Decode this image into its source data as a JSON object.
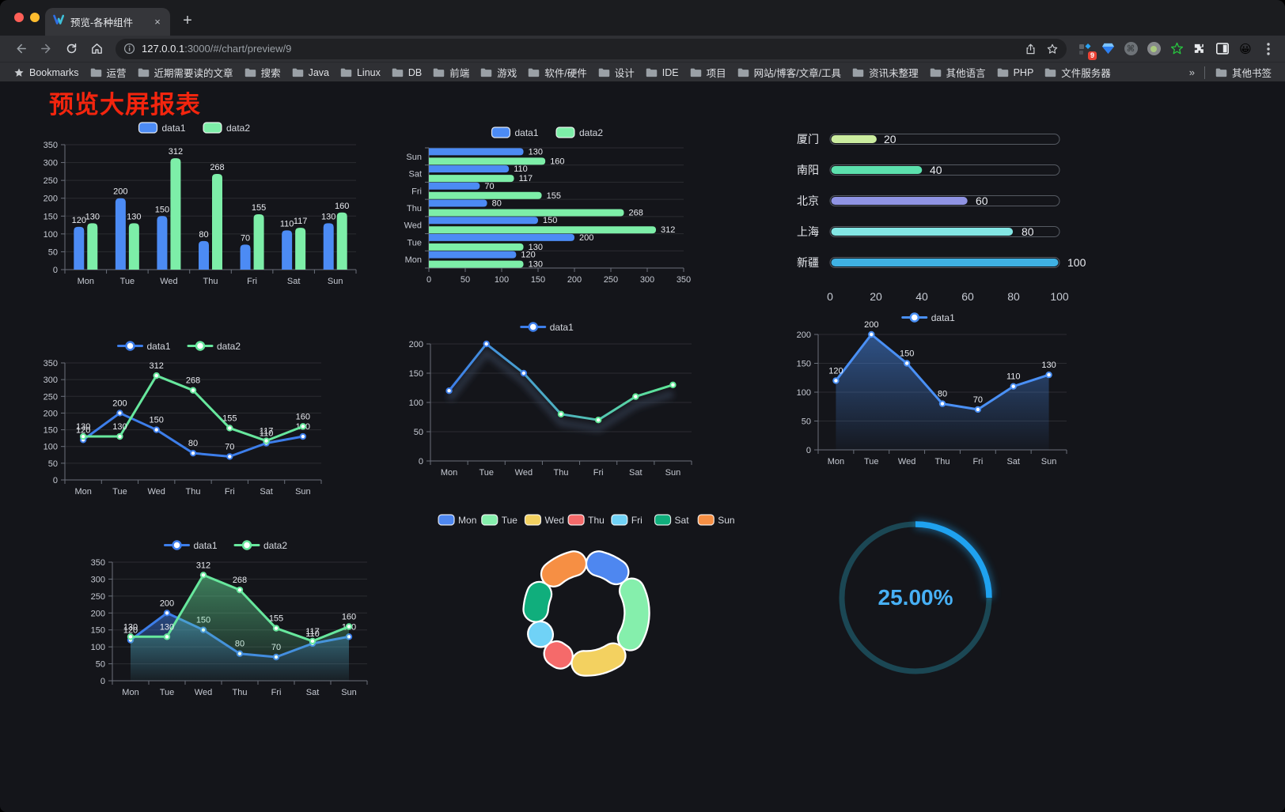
{
  "browser": {
    "tab_title": "预览-各种组件",
    "tab_close": "×",
    "new_tab": "+",
    "url_host": "127.0.0.1",
    "url_rest": ":3000/#/chart/preview/9",
    "bookmarks_label": "Bookmarks",
    "bookmarks": [
      "运营",
      "近期需要读的文章",
      "搜索",
      "Java",
      "Linux",
      "DB",
      "前端",
      "游戏",
      "软件/硬件",
      "设计",
      "IDE",
      "项目",
      "网站/博客/文章/工具",
      "资讯未整理",
      "其他语言",
      "PHP",
      "文件服务器"
    ],
    "bookmarks_overflow": "»",
    "other_bookmarks": "其他书签",
    "extension_badge": "9"
  },
  "page": {
    "title": "预览大屏报表",
    "title_color": "#f3250e",
    "background": "#14151a"
  },
  "chart_data": [
    {
      "type": "bar",
      "categories": [
        "Mon",
        "Tue",
        "Wed",
        "Thu",
        "Fri",
        "Sat",
        "Sun"
      ],
      "series": [
        {
          "name": "data1",
          "color": "#4C8BF4",
          "values": [
            120,
            200,
            150,
            80,
            70,
            110,
            130
          ]
        },
        {
          "name": "data2",
          "color": "#7DEEA8",
          "values": [
            130,
            130,
            312,
            268,
            155,
            117,
            160
          ]
        }
      ],
      "ylim": [
        0,
        350
      ],
      "ytick": 50,
      "value_labels": true,
      "legend": true,
      "legend_position": "top",
      "grid": true
    },
    {
      "type": "hbar",
      "categories": [
        "Mon",
        "Tue",
        "Wed",
        "Thu",
        "Fri",
        "Sat",
        "Sun"
      ],
      "series": [
        {
          "name": "data1",
          "color": "#4C8BF4",
          "values": [
            120,
            200,
            150,
            80,
            70,
            110,
            130
          ]
        },
        {
          "name": "data2",
          "color": "#7DEEA8",
          "values": [
            130,
            130,
            312,
            268,
            155,
            117,
            160
          ]
        }
      ],
      "xlim": [
        0,
        350
      ],
      "xtick": 50,
      "value_labels": true,
      "legend": true,
      "legend_position": "top",
      "grid": true
    },
    {
      "type": "progress",
      "rows": [
        {
          "label": "厦门",
          "value": 20,
          "color": "#CBEC9F"
        },
        {
          "label": "南阳",
          "value": 40,
          "color": "#5CE0AD"
        },
        {
          "label": "北京",
          "value": 60,
          "color": "#8F93E3"
        },
        {
          "label": "上海",
          "value": 80,
          "color": "#83E6E4"
        },
        {
          "label": "新疆",
          "value": 100,
          "color": "#3FB1E3"
        }
      ],
      "xlim": [
        0,
        100
      ],
      "xticks": [
        0,
        20,
        40,
        60,
        80,
        100
      ]
    },
    {
      "type": "line",
      "categories": [
        "Mon",
        "Tue",
        "Wed",
        "Thu",
        "Fri",
        "Sat",
        "Sun"
      ],
      "series": [
        {
          "name": "data1",
          "color": "#3D7EEA",
          "values": [
            120,
            200,
            150,
            80,
            70,
            110,
            130
          ]
        },
        {
          "name": "data2",
          "color": "#67E79D",
          "values": [
            130,
            130,
            312,
            268,
            155,
            117,
            160
          ]
        }
      ],
      "ylim": [
        0,
        350
      ],
      "ytick": 50,
      "value_labels": true,
      "legend": true,
      "legend_position": "top",
      "grid": true
    },
    {
      "type": "line",
      "categories": [
        "Mon",
        "Tue",
        "Wed",
        "Thu",
        "Fri",
        "Sat",
        "Sun"
      ],
      "series": [
        {
          "name": "data1",
          "color": "#3D7EEA",
          "gradient": [
            "#3D7EEA",
            "#5FE896"
          ],
          "values": [
            120,
            200,
            150,
            80,
            70,
            110,
            130
          ]
        }
      ],
      "ylim": [
        0,
        200
      ],
      "ytick": 50,
      "value_labels": false,
      "legend": true,
      "legend_position": "top",
      "shadow": true,
      "grid": true
    },
    {
      "type": "line",
      "area": true,
      "categories": [
        "Mon",
        "Tue",
        "Wed",
        "Thu",
        "Fri",
        "Sat",
        "Sun"
      ],
      "series": [
        {
          "name": "data1",
          "color": "#4A90F5",
          "values": [
            120,
            200,
            150,
            80,
            70,
            110,
            130
          ]
        }
      ],
      "ylim": [
        0,
        200
      ],
      "ytick": 50,
      "value_labels": true,
      "legend": true,
      "legend_position": "top",
      "grid": true
    },
    {
      "type": "line",
      "area": true,
      "categories": [
        "Mon",
        "Tue",
        "Wed",
        "Thu",
        "Fri",
        "Sat",
        "Sun"
      ],
      "series": [
        {
          "name": "data1",
          "color": "#3D7EEA",
          "values": [
            120,
            200,
            150,
            80,
            70,
            110,
            130
          ]
        },
        {
          "name": "data2",
          "color": "#67E79D",
          "values": [
            130,
            130,
            312,
            268,
            155,
            117,
            160
          ]
        }
      ],
      "ylim": [
        0,
        350
      ],
      "ytick": 50,
      "value_labels": true,
      "legend": true,
      "legend_position": "top",
      "grid": true
    },
    {
      "type": "pie",
      "donut": true,
      "categories": [
        "Mon",
        "Tue",
        "Wed",
        "Thu",
        "Fri",
        "Sat",
        "Sun"
      ],
      "values": [
        120,
        200,
        150,
        80,
        70,
        110,
        130
      ],
      "colors": [
        "#4E87F0",
        "#85EFAC",
        "#F3D160",
        "#F56A6A",
        "#70D2F6",
        "#10AE7C",
        "#F68F44"
      ],
      "legend": true,
      "legend_position": "top"
    },
    {
      "type": "gauge",
      "value": 25,
      "label": "25.00%",
      "color": "#1FA2F0",
      "track_color": "#1B4754",
      "text_color": "#47B0F5"
    }
  ]
}
